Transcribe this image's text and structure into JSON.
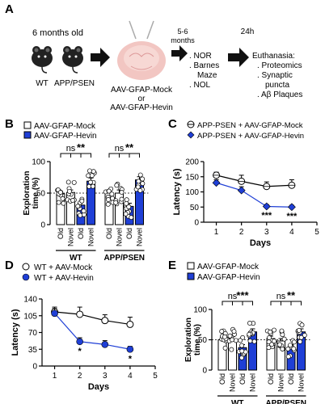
{
  "panels": {
    "A": {
      "label": "A",
      "age": "6 months old",
      "mouse_wt": "WT",
      "mouse_app": "APP/PSEN",
      "aav_line1": "AAV-GFAP-Mock",
      "aav_line2": "or",
      "aav_line3": "AAV-GFAP-Hevin",
      "wait1_line1": "5-6",
      "wait1_line2": "months",
      "tests": [
        ". NOR",
        ". Barnes",
        "Maze",
        ". NOL"
      ],
      "wait2": "24h",
      "euth_title": "Euthanasia:",
      "euth_items": [
        ". Proteomics",
        ". Synaptic",
        "puncta",
        ". Aβ Plaques"
      ]
    },
    "B": {
      "label": "B",
      "legend": [
        "AAV-GFAP-Mock",
        "AAV-GFAP-Hevin"
      ]
    },
    "C": {
      "label": "C",
      "legend": [
        "APP-PSEN + AAV-GFAP-Mock",
        "APP-PSEN + AAV-GFAP-Hevin"
      ]
    },
    "D": {
      "label": "D",
      "legend": [
        "WT + AAV-Mock",
        "WT + AAV-Hevin"
      ]
    },
    "E": {
      "label": "E",
      "legend": [
        "AAV-GFAP-Mock",
        "AAV-GFAP-Hevin"
      ]
    }
  },
  "colors": {
    "blue": "#1f3fd6",
    "grey": "#555555"
  },
  "chart_data": [
    {
      "id": "B",
      "type": "bar",
      "ylabel": "Exploration time (%)",
      "ylim": [
        0,
        100
      ],
      "yticks": [
        0,
        50,
        100
      ],
      "reference_line": 50,
      "groups": [
        "WT",
        "APP/PSEN"
      ],
      "categories": [
        "Old",
        "Novel",
        "Old",
        "Novel",
        "Old",
        "Novel",
        "Old",
        "Novel"
      ],
      "series_index": [
        0,
        0,
        1,
        1,
        0,
        0,
        1,
        1
      ],
      "values": [
        49,
        51,
        31,
        69,
        50,
        50,
        29,
        71
      ],
      "errors": [
        4,
        4,
        5,
        5,
        5,
        5,
        5,
        5
      ],
      "sig": [
        {
          "a": 0,
          "b": 2,
          "label": "ns"
        },
        {
          "a": 1,
          "b": 3,
          "label": "**"
        },
        {
          "a": 4,
          "b": 6,
          "label": "ns"
        },
        {
          "a": 5,
          "b": 7,
          "label": "**"
        }
      ]
    },
    {
      "id": "C",
      "type": "line",
      "xlabel": "Days",
      "ylabel": "Latency (s)",
      "xlim": [
        0.5,
        5
      ],
      "xticks": [
        1,
        2,
        3,
        4,
        5
      ],
      "ylim": [
        0,
        200
      ],
      "yticks": [
        0,
        50,
        100,
        150,
        200
      ],
      "x": [
        1,
        2,
        3,
        4
      ],
      "series": [
        {
          "values": [
            155,
            135,
            118,
            122
          ],
          "errors": [
            10,
            20,
            15,
            18
          ]
        },
        {
          "values": [
            130,
            105,
            52,
            50
          ],
          "errors": [
            10,
            12,
            6,
            6
          ]
        }
      ],
      "annotations": [
        {
          "x": 3,
          "label": "***"
        },
        {
          "x": 4,
          "label": "***"
        }
      ]
    },
    {
      "id": "D",
      "type": "line",
      "xlabel": "Days",
      "ylabel": "Latency (s)",
      "xlim": [
        0.5,
        5
      ],
      "xticks": [
        1,
        2,
        3,
        4,
        5
      ],
      "ylim": [
        0,
        140
      ],
      "yticks": [
        0,
        35,
        70,
        105,
        140
      ],
      "x": [
        1,
        2,
        3,
        4
      ],
      "series": [
        {
          "values": [
            113,
            108,
            95,
            87
          ],
          "errors": [
            10,
            15,
            12,
            15
          ]
        },
        {
          "values": [
            110,
            51,
            45,
            35
          ],
          "errors": [
            10,
            8,
            8,
            6
          ]
        }
      ],
      "annotations": [
        {
          "x": 2,
          "label": "*"
        },
        {
          "x": 4,
          "label": "*"
        }
      ]
    },
    {
      "id": "E",
      "type": "bar",
      "ylabel": "Exploration time (%)",
      "ylim": [
        0,
        100
      ],
      "yticks": [
        0,
        50,
        100
      ],
      "reference_line": 50,
      "groups": [
        "WT",
        "APP/PSEN"
      ],
      "categories": [
        "Old",
        "Novel",
        "Old",
        "Novel",
        "Old",
        "Novel",
        "Old",
        "Novel"
      ],
      "series_index": [
        0,
        0,
        1,
        1,
        0,
        0,
        1,
        1
      ],
      "values": [
        50,
        50,
        37,
        63,
        52,
        48,
        37,
        63
      ],
      "errors": [
        5,
        5,
        5,
        5,
        4,
        4,
        5,
        5
      ],
      "sig": [
        {
          "a": 0,
          "b": 2,
          "label": "ns"
        },
        {
          "a": 1,
          "b": 3,
          "label": "***"
        },
        {
          "a": 4,
          "b": 6,
          "label": "ns"
        },
        {
          "a": 5,
          "b": 7,
          "label": "**"
        }
      ]
    }
  ]
}
